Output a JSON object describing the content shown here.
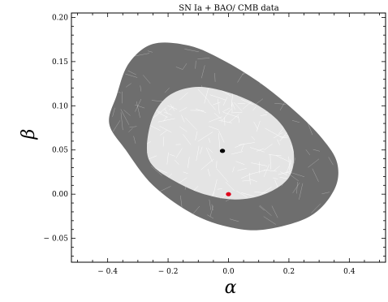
{
  "chart_data": {
    "type": "contour",
    "title": "SN Ia + BAO/ CMB data",
    "xlabel": "α",
    "ylabel": "β",
    "xlim": [
      -0.52,
      0.52
    ],
    "ylim": [
      -0.077,
      0.205
    ],
    "x_ticks": [
      -0.4,
      -0.2,
      0.0,
      0.2,
      0.4
    ],
    "x_tick_labels": [
      "− 0.4",
      "− 0.2",
      "0.0",
      "0.2",
      "0.4"
    ],
    "y_ticks": [
      -0.05,
      0.0,
      0.05,
      0.1,
      0.15,
      0.2
    ],
    "y_tick_labels": [
      "− 0.05",
      "0.00",
      "0.05",
      "0.10",
      "0.15",
      "0.20"
    ],
    "grid": false,
    "contours": [
      {
        "level": "outer",
        "color": "#6e6e6e",
        "center": [
          0.015,
          0.064
        ],
        "outline": [
          [
            -0.37,
            0.112
          ],
          [
            -0.33,
            0.148
          ],
          [
            -0.25,
            0.17
          ],
          [
            -0.13,
            0.168
          ],
          [
            -0.02,
            0.152
          ],
          [
            0.1,
            0.127
          ],
          [
            0.22,
            0.094
          ],
          [
            0.31,
            0.063
          ],
          [
            0.36,
            0.035
          ],
          [
            0.35,
            0.005
          ],
          [
            0.27,
            -0.025
          ],
          [
            0.12,
            -0.04
          ],
          [
            0.0,
            -0.037
          ],
          [
            -0.12,
            -0.022
          ],
          [
            -0.25,
            0.01
          ],
          [
            -0.34,
            0.05
          ],
          [
            -0.395,
            0.08
          ]
        ]
      },
      {
        "level": "inner",
        "color": "#e4e4e4",
        "center": [
          -0.03,
          0.056
        ],
        "outline": [
          [
            -0.27,
            0.055
          ],
          [
            -0.25,
            0.088
          ],
          [
            -0.2,
            0.111
          ],
          [
            -0.12,
            0.121
          ],
          [
            -0.03,
            0.118
          ],
          [
            0.08,
            0.104
          ],
          [
            0.17,
            0.081
          ],
          [
            0.215,
            0.05
          ],
          [
            0.2,
            0.019
          ],
          [
            0.12,
            0.0
          ],
          [
            0.02,
            -0.006
          ],
          [
            -0.09,
            0.001
          ],
          [
            -0.19,
            0.017
          ],
          [
            -0.255,
            0.034
          ]
        ]
      }
    ],
    "points": [
      {
        "x": -0.02,
        "y": 0.049,
        "color": "#000000"
      },
      {
        "x": 0.0,
        "y": 0.0,
        "color": "#e0001a"
      }
    ]
  }
}
